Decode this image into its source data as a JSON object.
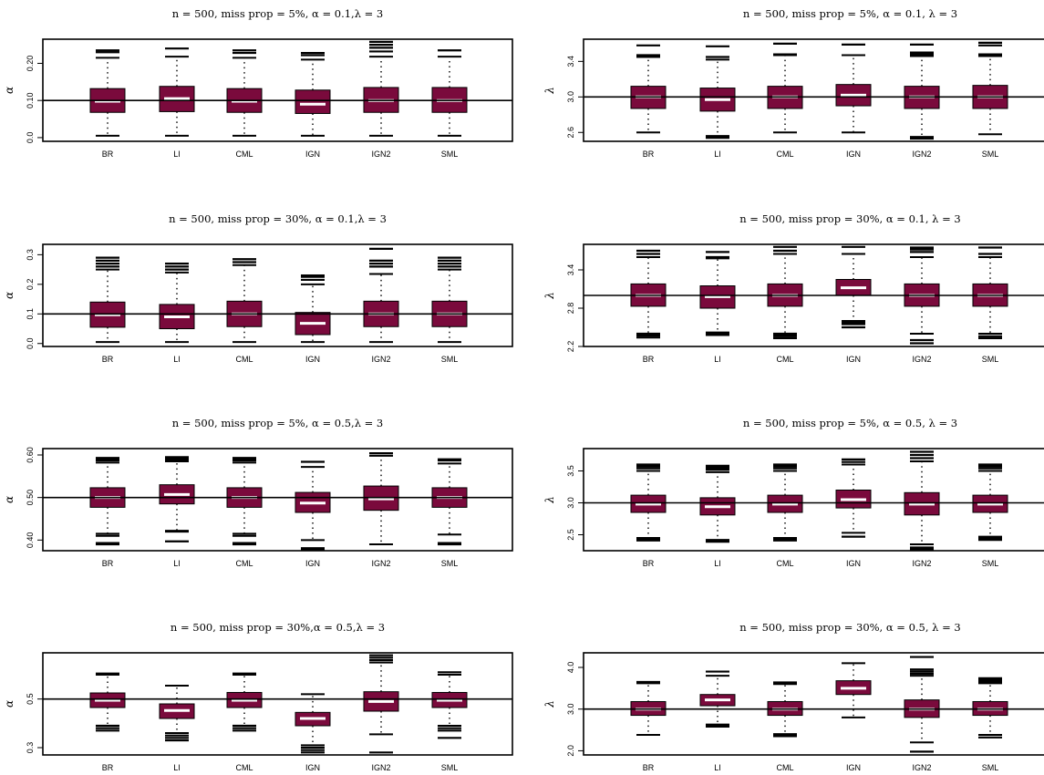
{
  "colors": {
    "box_fill": "#7a0a3c",
    "median": "#ffffff",
    "line": "#000000"
  },
  "chart_data": [
    {
      "type": "boxplot",
      "title": "n = 500, miss prop = 5%, α = 0.1,λ = 3",
      "ylabel": "α",
      "categories": [
        "BR",
        "LI",
        "CML",
        "IGN",
        "IGN2",
        "SML"
      ],
      "yticks": [
        0.0,
        0.1,
        0.2
      ],
      "ytick_labels": [
        "0.0",
        "0.10",
        "0.20"
      ],
      "ylim": [
        -0.01,
        0.265
      ],
      "reference_line": 0.1,
      "boxes": [
        {
          "q1": 0.068,
          "median": 0.098,
          "q3": 0.132,
          "whisker_low": 0.005,
          "whisker_high": 0.215,
          "outliers": [
            0.23,
            0.235
          ]
        },
        {
          "q1": 0.07,
          "median": 0.105,
          "q3": 0.138,
          "whisker_low": 0.005,
          "whisker_high": 0.218,
          "outliers": [
            0.24
          ]
        },
        {
          "q1": 0.068,
          "median": 0.098,
          "q3": 0.132,
          "whisker_low": 0.005,
          "whisker_high": 0.215,
          "outliers": [
            0.228,
            0.235
          ]
        },
        {
          "q1": 0.065,
          "median": 0.09,
          "q3": 0.128,
          "whisker_low": 0.005,
          "whisker_high": 0.21,
          "outliers": [
            0.222,
            0.228
          ]
        },
        {
          "q1": 0.068,
          "median": 0.1,
          "q3": 0.135,
          "whisker_low": 0.005,
          "whisker_high": 0.218,
          "outliers": [
            0.232,
            0.242,
            0.25,
            0.258
          ]
        },
        {
          "q1": 0.068,
          "median": 0.1,
          "q3": 0.135,
          "whisker_low": 0.005,
          "whisker_high": 0.218,
          "outliers": [
            0.235
          ]
        }
      ]
    },
    {
      "type": "boxplot",
      "title": "n = 500, miss prop = 5%, α = 0.1, λ = 3",
      "ylabel": "λ",
      "categories": [
        "BR",
        "LI",
        "CML",
        "IGN",
        "IGN2",
        "SML"
      ],
      "yticks": [
        2.6,
        3.0,
        3.4
      ],
      "ytick_labels": [
        "2.6",
        "3.0",
        "3.4"
      ],
      "ylim": [
        2.5,
        3.65
      ],
      "reference_line": 3.0,
      "boxes": [
        {
          "q1": 2.87,
          "median": 3.0,
          "q3": 3.12,
          "whisker_low": 2.6,
          "whisker_high": 3.45,
          "outliers": [
            3.47,
            3.58
          ]
        },
        {
          "q1": 2.84,
          "median": 2.97,
          "q3": 3.1,
          "whisker_low": 2.56,
          "whisker_high": 3.42,
          "outliers": [
            2.54,
            3.45,
            3.57
          ]
        },
        {
          "q1": 2.87,
          "median": 3.0,
          "q3": 3.12,
          "whisker_low": 2.6,
          "whisker_high": 3.47,
          "outliers": [
            3.48,
            3.6
          ]
        },
        {
          "q1": 2.9,
          "median": 3.02,
          "q3": 3.14,
          "whisker_low": 2.6,
          "whisker_high": 3.47,
          "outliers": [
            3.59
          ]
        },
        {
          "q1": 2.87,
          "median": 3.0,
          "q3": 3.12,
          "whisker_low": 2.55,
          "whisker_high": 3.46,
          "outliers": [
            2.53,
            3.48,
            3.5,
            3.59
          ]
        },
        {
          "q1": 2.87,
          "median": 3.0,
          "q3": 3.13,
          "whisker_low": 2.58,
          "whisker_high": 3.46,
          "outliers": [
            3.48,
            3.58,
            3.61
          ]
        }
      ]
    },
    {
      "type": "boxplot",
      "title": "n = 500, miss prop = 30%, α = 0.1,λ = 3",
      "ylabel": "α",
      "categories": [
        "BR",
        "LI",
        "CML",
        "IGN",
        "IGN2",
        "SML"
      ],
      "yticks": [
        0.0,
        0.1,
        0.2,
        0.3
      ],
      "ytick_labels": [
        "0.0",
        "0.1",
        "0.2",
        "0.3"
      ],
      "ylim": [
        -0.01,
        0.335
      ],
      "reference_line": 0.1,
      "boxes": [
        {
          "q1": 0.055,
          "median": 0.097,
          "q3": 0.14,
          "whisker_low": 0.005,
          "whisker_high": 0.25,
          "outliers": [
            0.26,
            0.27,
            0.28,
            0.29
          ]
        },
        {
          "q1": 0.05,
          "median": 0.09,
          "q3": 0.132,
          "whisker_low": 0.005,
          "whisker_high": 0.24,
          "outliers": [
            0.25,
            0.26,
            0.27
          ]
        },
        {
          "q1": 0.057,
          "median": 0.1,
          "q3": 0.143,
          "whisker_low": 0.005,
          "whisker_high": 0.265,
          "outliers": [
            0.275,
            0.285
          ]
        },
        {
          "q1": 0.03,
          "median": 0.068,
          "q3": 0.105,
          "whisker_low": 0.005,
          "whisker_high": 0.2,
          "outliers": [
            0.215,
            0.225,
            0.23
          ]
        },
        {
          "q1": 0.057,
          "median": 0.1,
          "q3": 0.143,
          "whisker_low": 0.005,
          "whisker_high": 0.235,
          "outliers": [
            0.26,
            0.27,
            0.28,
            0.32
          ]
        },
        {
          "q1": 0.057,
          "median": 0.1,
          "q3": 0.143,
          "whisker_low": 0.005,
          "whisker_high": 0.25,
          "outliers": [
            0.26,
            0.27,
            0.28,
            0.29
          ]
        }
      ]
    },
    {
      "type": "boxplot",
      "title": "n = 500, miss prop = 30%, α = 0.1, λ = 3",
      "ylabel": "λ",
      "categories": [
        "BR",
        "LI",
        "CML",
        "IGN",
        "IGN2",
        "SML"
      ],
      "yticks": [
        2.2,
        2.8,
        3.4
      ],
      "ytick_labels": [
        "2.2",
        "2.8",
        "3.4"
      ],
      "ylim": [
        2.2,
        3.8
      ],
      "reference_line": 3.0,
      "boxes": [
        {
          "q1": 2.83,
          "median": 3.0,
          "q3": 3.18,
          "whisker_low": 2.4,
          "whisker_high": 3.6,
          "outliers": [
            2.34,
            2.37,
            2.4,
            3.65,
            3.7
          ]
        },
        {
          "q1": 2.8,
          "median": 2.98,
          "q3": 3.15,
          "whisker_low": 2.42,
          "whisker_high": 3.58,
          "outliers": [
            2.38,
            2.4,
            3.6,
            3.68
          ]
        },
        {
          "q1": 2.83,
          "median": 3.0,
          "q3": 3.18,
          "whisker_low": 2.38,
          "whisker_high": 3.65,
          "outliers": [
            2.33,
            2.36,
            2.4,
            3.7,
            3.76
          ]
        },
        {
          "q1": 3.0,
          "median": 3.12,
          "q3": 3.25,
          "whisker_low": 2.6,
          "whisker_high": 3.65,
          "outliers": [
            2.5,
            2.55,
            2.58,
            3.76
          ]
        },
        {
          "q1": 2.83,
          "median": 3.0,
          "q3": 3.18,
          "whisker_low": 2.4,
          "whisker_high": 3.6,
          "outliers": [
            2.25,
            2.3,
            3.68,
            3.72,
            3.75
          ]
        },
        {
          "q1": 2.83,
          "median": 3.0,
          "q3": 3.18,
          "whisker_low": 2.4,
          "whisker_high": 3.6,
          "outliers": [
            2.33,
            2.36,
            3.65,
            3.75
          ]
        }
      ]
    },
    {
      "type": "boxplot",
      "title": "n = 500, miss prop = 5%, α = 0.5,λ = 3",
      "ylabel": "α",
      "categories": [
        "BR",
        "LI",
        "CML",
        "IGN",
        "IGN2",
        "SML"
      ],
      "yticks": [
        0.4,
        0.5,
        0.6
      ],
      "ytick_labels": [
        "0.40",
        "0.50",
        "0.60"
      ],
      "ylim": [
        0.375,
        0.615
      ],
      "reference_line": 0.5,
      "boxes": [
        {
          "q1": 0.477,
          "median": 0.5,
          "q3": 0.523,
          "whisker_low": 0.415,
          "whisker_high": 0.582,
          "outliers": [
            0.39,
            0.393,
            0.41,
            0.587,
            0.59,
            0.593
          ]
        },
        {
          "q1": 0.485,
          "median": 0.507,
          "q3": 0.53,
          "whisker_low": 0.422,
          "whisker_high": 0.585,
          "outliers": [
            0.397,
            0.42,
            0.588,
            0.592,
            0.595
          ]
        },
        {
          "q1": 0.477,
          "median": 0.5,
          "q3": 0.523,
          "whisker_low": 0.415,
          "whisker_high": 0.582,
          "outliers": [
            0.39,
            0.393,
            0.41,
            0.587,
            0.59,
            0.593
          ]
        },
        {
          "q1": 0.465,
          "median": 0.487,
          "q3": 0.512,
          "whisker_low": 0.4,
          "whisker_high": 0.572,
          "outliers": [
            0.378,
            0.381,
            0.584
          ]
        },
        {
          "q1": 0.47,
          "median": 0.497,
          "q3": 0.527,
          "whisker_low": 0.39,
          "whisker_high": 0.598,
          "outliers": [
            0.604
          ]
        },
        {
          "q1": 0.477,
          "median": 0.5,
          "q3": 0.523,
          "whisker_low": 0.413,
          "whisker_high": 0.58,
          "outliers": [
            0.39,
            0.393,
            0.587,
            0.59
          ]
        }
      ]
    },
    {
      "type": "boxplot",
      "title": "n = 500, miss prop = 5%, α = 0.5, λ = 3",
      "ylabel": "λ",
      "categories": [
        "BR",
        "LI",
        "CML",
        "IGN",
        "IGN2",
        "SML"
      ],
      "yticks": [
        2.5,
        3.0,
        3.5
      ],
      "ytick_labels": [
        "2.5",
        "3.0",
        "3.5"
      ],
      "ylim": [
        2.25,
        3.85
      ],
      "reference_line": 3.0,
      "boxes": [
        {
          "q1": 2.85,
          "median": 2.98,
          "q3": 3.12,
          "whisker_low": 2.45,
          "whisker_high": 3.5,
          "outliers": [
            2.41,
            2.43,
            3.54,
            3.57,
            3.6
          ]
        },
        {
          "q1": 2.81,
          "median": 2.94,
          "q3": 3.08,
          "whisker_low": 2.42,
          "whisker_high": 3.48,
          "outliers": [
            2.39,
            2.41,
            3.52,
            3.55,
            3.58
          ]
        },
        {
          "q1": 2.85,
          "median": 2.98,
          "q3": 3.12,
          "whisker_low": 2.45,
          "whisker_high": 3.5,
          "outliers": [
            2.41,
            2.43,
            3.54,
            3.57,
            3.6
          ]
        },
        {
          "q1": 2.92,
          "median": 3.05,
          "q3": 3.2,
          "whisker_low": 2.53,
          "whisker_high": 3.6,
          "outliers": [
            2.47,
            3.64,
            3.68
          ]
        },
        {
          "q1": 2.81,
          "median": 2.98,
          "q3": 3.16,
          "whisker_low": 2.35,
          "whisker_high": 3.65,
          "outliers": [
            2.27,
            2.3,
            3.7,
            3.75,
            3.8
          ]
        },
        {
          "q1": 2.85,
          "median": 2.98,
          "q3": 3.12,
          "whisker_low": 2.47,
          "whisker_high": 3.5,
          "outliers": [
            2.42,
            2.45,
            3.54,
            3.57,
            3.6
          ]
        }
      ]
    },
    {
      "type": "boxplot",
      "title": "n = 500, miss prop = 30%,α = 0.5,λ = 3",
      "ylabel": "α",
      "categories": [
        "BR",
        "LI",
        "CML",
        "IGN",
        "IGN2",
        "SML"
      ],
      "yticks": [
        0.3,
        0.5
      ],
      "ytick_labels": [
        "0.3",
        "0.5"
      ],
      "ylim": [
        0.27,
        0.69
      ],
      "reference_line": 0.5,
      "boxes": [
        {
          "q1": 0.465,
          "median": 0.495,
          "q3": 0.525,
          "whisker_low": 0.39,
          "whisker_high": 0.6,
          "outliers": [
            0.37,
            0.38,
            0.39,
            0.605
          ]
        },
        {
          "q1": 0.42,
          "median": 0.453,
          "q3": 0.48,
          "whisker_low": 0.36,
          "whisker_high": 0.555,
          "outliers": [
            0.33,
            0.34,
            0.35
          ]
        },
        {
          "q1": 0.465,
          "median": 0.495,
          "q3": 0.527,
          "whisker_low": 0.39,
          "whisker_high": 0.6,
          "outliers": [
            0.37,
            0.38,
            0.39,
            0.605
          ]
        },
        {
          "q1": 0.39,
          "median": 0.42,
          "q3": 0.445,
          "whisker_low": 0.31,
          "whisker_high": 0.52,
          "outliers": [
            0.28,
            0.29,
            0.3
          ]
        },
        {
          "q1": 0.45,
          "median": 0.49,
          "q3": 0.53,
          "whisker_low": 0.355,
          "whisker_high": 0.65,
          "outliers": [
            0.28,
            0.66,
            0.67,
            0.68
          ]
        },
        {
          "q1": 0.465,
          "median": 0.495,
          "q3": 0.527,
          "whisker_low": 0.39,
          "whisker_high": 0.6,
          "outliers": [
            0.34,
            0.37,
            0.38,
            0.61
          ]
        }
      ]
    },
    {
      "type": "boxplot",
      "title": "n = 500, miss prop = 30%, α = 0.5, λ = 3",
      "ylabel": "λ",
      "categories": [
        "BR",
        "LI",
        "CML",
        "IGN",
        "IGN2",
        "SML"
      ],
      "yticks": [
        2.0,
        3.0,
        4.0
      ],
      "ytick_labels": [
        "2.0",
        "3.0",
        "4.0"
      ],
      "ylim": [
        1.9,
        4.35
      ],
      "reference_line": 3.0,
      "boxes": [
        {
          "q1": 2.85,
          "median": 3.0,
          "q3": 3.18,
          "whisker_low": 2.38,
          "whisker_high": 3.62,
          "outliers": [
            3.65
          ]
        },
        {
          "q1": 3.08,
          "median": 3.22,
          "q3": 3.35,
          "whisker_low": 2.63,
          "whisker_high": 3.8,
          "outliers": [
            2.58,
            2.6,
            3.9
          ]
        },
        {
          "q1": 2.85,
          "median": 3.0,
          "q3": 3.18,
          "whisker_low": 2.4,
          "whisker_high": 3.6,
          "outliers": [
            2.35,
            2.38,
            3.64
          ]
        },
        {
          "q1": 3.35,
          "median": 3.5,
          "q3": 3.68,
          "whisker_low": 2.8,
          "whisker_high": 4.1,
          "outliers": []
        },
        {
          "q1": 2.8,
          "median": 3.0,
          "q3": 3.22,
          "whisker_low": 2.2,
          "whisker_high": 3.8,
          "outliers": [
            1.98,
            3.85,
            3.9,
            3.95,
            4.25
          ]
        },
        {
          "q1": 2.85,
          "median": 3.0,
          "q3": 3.18,
          "whisker_low": 2.38,
          "whisker_high": 3.62,
          "outliers": [
            2.32,
            3.66,
            3.7,
            3.74
          ]
        }
      ]
    }
  ]
}
